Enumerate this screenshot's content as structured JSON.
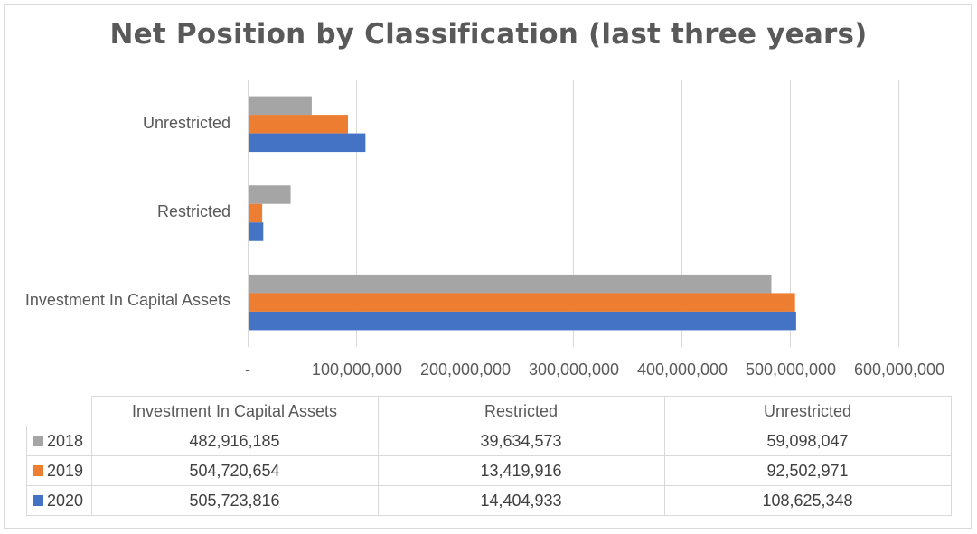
{
  "chart_data": {
    "type": "bar",
    "orientation": "horizontal",
    "title": "Net Position by Classification (last three years)",
    "categories": [
      "Investment In Capital Assets",
      "Restricted",
      "Unrestricted"
    ],
    "series": [
      {
        "name": "2018",
        "color": "#a5a5a5",
        "values": [
          482916185,
          39634573,
          59098047
        ],
        "labels": [
          "482,916,185",
          "39,634,573",
          "59,098,047"
        ]
      },
      {
        "name": "2019",
        "color": "#ed7d31",
        "values": [
          504720654,
          13419916,
          92502971
        ],
        "labels": [
          "504,720,654",
          "13,419,916",
          "92,502,971"
        ]
      },
      {
        "name": "2020",
        "color": "#4472c4",
        "values": [
          505723816,
          14404933,
          108625348
        ],
        "labels": [
          "505,723,816",
          "14,404,933",
          "108,625,348"
        ]
      }
    ],
    "xlim": [
      0,
      600000000
    ],
    "x_ticks": [
      0,
      100000000,
      200000000,
      300000000,
      400000000,
      500000000,
      600000000
    ],
    "x_tick_labels": [
      "-",
      "100,000,000",
      "200,000,000",
      "300,000,000",
      "400,000,000",
      "500,000,000",
      "600,000,000"
    ],
    "grid": true,
    "legend": "data-table"
  }
}
